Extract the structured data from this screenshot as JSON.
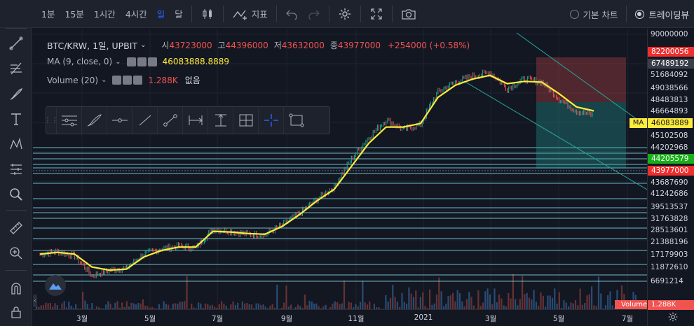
{
  "toolbar": {
    "intervals": [
      "1분",
      "15분",
      "1시간",
      "4시간",
      "일",
      "달"
    ],
    "active_interval": "일",
    "indicators_label": "지표",
    "chart_modes": [
      "기본 차트",
      "트레이딩뷰"
    ],
    "active_mode": "트레이딩뷰"
  },
  "legend": {
    "symbol": "BTC/KRW, 1일, UPBIT",
    "open_label": "시",
    "open": "43723000",
    "high_label": "고",
    "high": "44396000",
    "low_label": "저",
    "low": "43632000",
    "close_label": "종",
    "close": "43977000",
    "change": "+254000 (+0.58%)",
    "ma_title": "MA (9, close, 0)",
    "ma_value": "46083888.8889",
    "vol_title": "Volume (20)",
    "vol_value": "1.288K",
    "vol_extra": "없음"
  },
  "price_axis": {
    "labels": [
      "90000000",
      "51684092",
      "49038566",
      "48483813",
      "46664893",
      "45102508",
      "44202968",
      "43687690",
      "41242686",
      "39513537",
      "31763828",
      "28513601",
      "21388196",
      "17179903",
      "11872610",
      "6691214"
    ],
    "tag_red_top": "82200056",
    "tag_gray": "67489192",
    "tag_ma_label": "MA",
    "tag_ma": "46083889",
    "tag_green": "44205579",
    "tag_close": "43977000",
    "volume_label": "Volume",
    "volume_value": "1.288K"
  },
  "time_axis": [
    "3월",
    "5월",
    "7월",
    "9월",
    "11월",
    "2021",
    "3월",
    "5월",
    "7월"
  ],
  "colors": {
    "background": "#131722",
    "toolbar": "#1e222d",
    "up": "#26a69a",
    "down": "#ef5350",
    "ma": "#ffeb3b",
    "accent": "#2962ff"
  },
  "chart_data": {
    "type": "line",
    "title": "BTC/KRW, 1일, UPBIT",
    "series": [
      {
        "name": "Price (approx, KRW)",
        "values": [
          10500000,
          10800000,
          10300000,
          8400000,
          8900000,
          9100000,
          10500000,
          11100000,
          11400000,
          11200000,
          13600000,
          13300000,
          12900000,
          12800000,
          14200000,
          16000000,
          18500000,
          21000000,
          28000000,
          35000000,
          42000000,
          38000000,
          40000000,
          56000000,
          62000000,
          66000000,
          68500000,
          58000000,
          64000000,
          62000000,
          52000000,
          46000000,
          43977000
        ]
      },
      {
        "name": "MA (9, close, 0)",
        "values": [
          10500000,
          10700000,
          10500000,
          9200000,
          8900000,
          9000000,
          10200000,
          10900000,
          11300000,
          11300000,
          13300000,
          13200000,
          13000000,
          12900000,
          14000000,
          15800000,
          18200000,
          20500000,
          26000000,
          33000000,
          39000000,
          39000000,
          40500000,
          53000000,
          60000000,
          64000000,
          66500000,
          61000000,
          62500000,
          62000000,
          55000000,
          48000000,
          46083889
        ]
      }
    ],
    "volume_last": "1.288K",
    "x_ticks": [
      "3월",
      "5월",
      "7월",
      "9월",
      "11월",
      "2021",
      "3월",
      "5월",
      "7월"
    ]
  }
}
